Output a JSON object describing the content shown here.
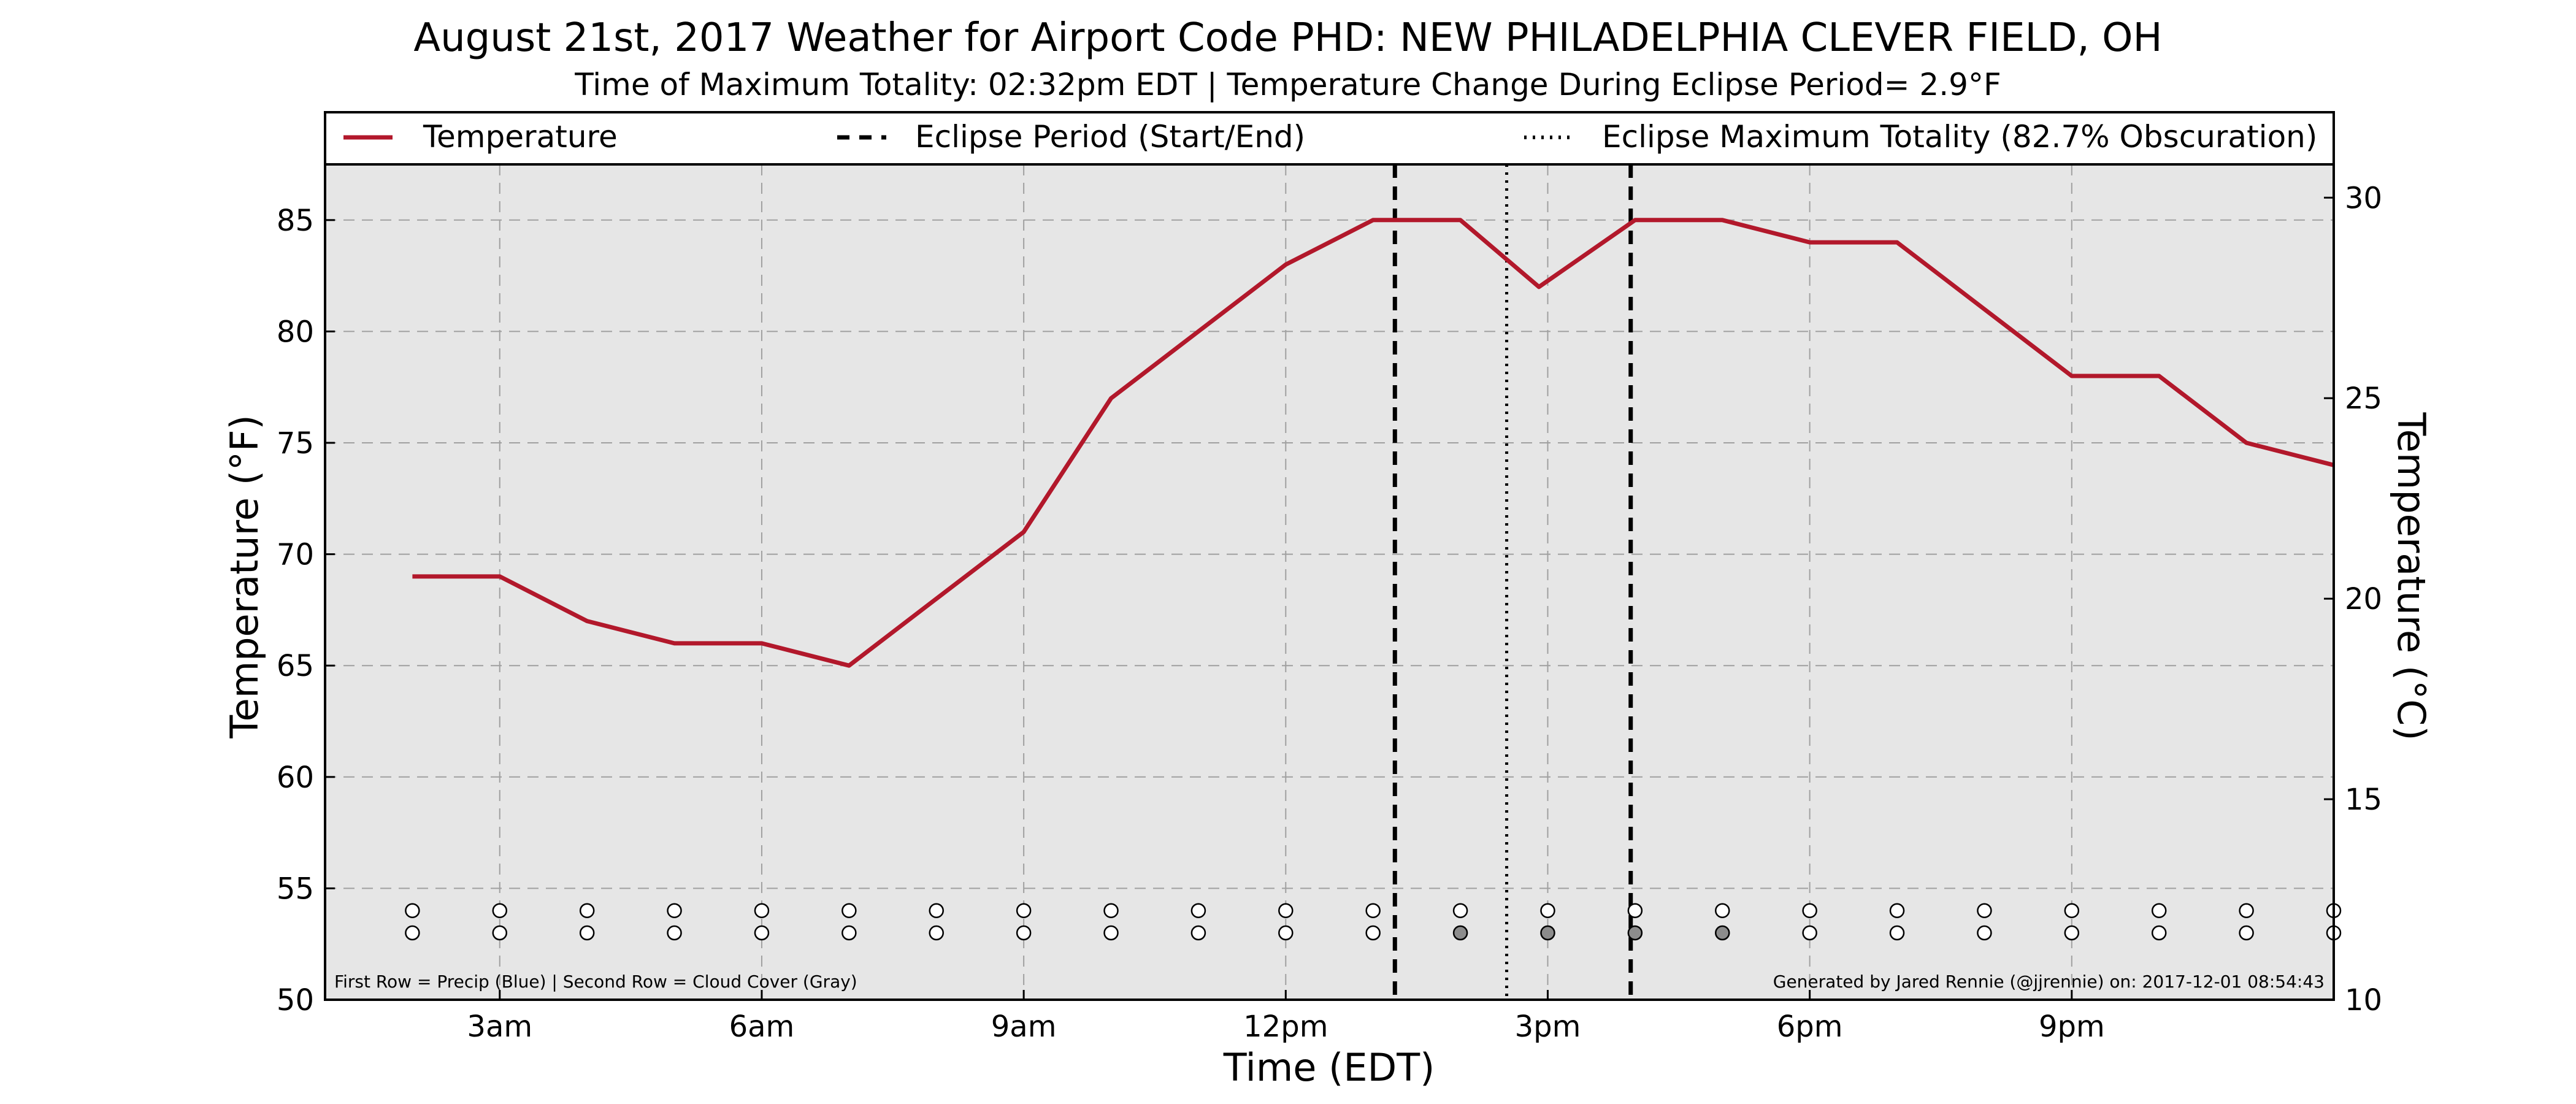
{
  "chart_data": {
    "type": "line",
    "title": "August 21st, 2017 Weather for Airport Code PHD: NEW PHILADELPHIA CLEVER FIELD, OH",
    "subtitle": "Time of Maximum Totality: 02:32pm EDT | Temperature Change During Eclipse Period= 2.9°F",
    "xlabel": "Time (EDT)",
    "ylabel": "Temperature (°F)",
    "ylabel_right": "Temperature (°C)",
    "x_unit": "hours since midnight (EDT)",
    "xlim": [
      1.0,
      24.0
    ],
    "ylim": [
      50,
      87.5
    ],
    "ylim_right": [
      10,
      30.83
    ],
    "x_ticks": [
      {
        "x": 3,
        "label": "3am"
      },
      {
        "x": 6,
        "label": "6am"
      },
      {
        "x": 9,
        "label": "9am"
      },
      {
        "x": 12,
        "label": "12pm"
      },
      {
        "x": 15,
        "label": "3pm"
      },
      {
        "x": 18,
        "label": "6pm"
      },
      {
        "x": 21,
        "label": "9pm"
      }
    ],
    "y_ticks": [
      50,
      55,
      60,
      65,
      70,
      75,
      80,
      85
    ],
    "y_ticks_right": [
      10,
      15,
      20,
      25,
      30
    ],
    "grid": true,
    "legend_position": "top",
    "series": [
      {
        "name": "Temperature",
        "color": "#b2182b",
        "x": [
          2,
          3,
          4,
          5,
          6,
          7,
          8,
          9,
          10,
          11,
          12,
          13,
          13.5,
          14,
          14.9,
          16,
          16.5,
          17,
          18,
          19,
          20,
          21,
          22,
          23,
          24
        ],
        "values": [
          69,
          69,
          67,
          66,
          66,
          65,
          68,
          71,
          77,
          80,
          83,
          85,
          85,
          85,
          82,
          85,
          85,
          85,
          84,
          84,
          81,
          78,
          78,
          75,
          74
        ]
      }
    ],
    "eclipse": {
      "start_x": 13.25,
      "end_x": 15.95,
      "max_totality_x": 14.53,
      "start_end_label": "Eclipse Period (Start/End)",
      "max_label": "Eclipse Maximum Totality (82.7% Obscuration)"
    },
    "markers": {
      "x": [
        2,
        3,
        4,
        5,
        6,
        7,
        8,
        9,
        10,
        11,
        12,
        13,
        14,
        15,
        16,
        17,
        18,
        19,
        20,
        21,
        22,
        23,
        24
      ],
      "precip_y": 54,
      "cloud_y": 53,
      "cloud_shaded": [
        14,
        15,
        16,
        17
      ]
    },
    "footnote_left": "First Row = Precip (Blue) | Second Row = Cloud Cover (Gray)",
    "footnote_right": "Generated by Jared Rennie (@jjrennie) on: 2017-12-01 08:54:43"
  }
}
